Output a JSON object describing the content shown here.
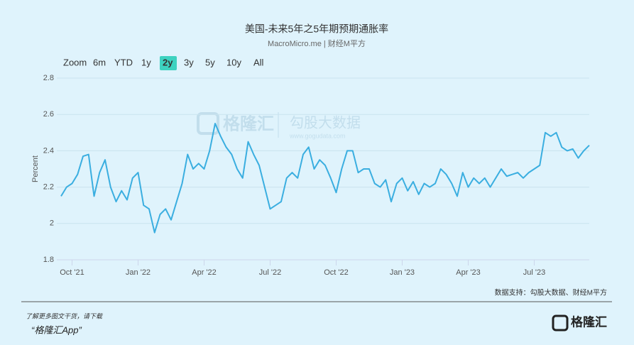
{
  "chart_data": {
    "type": "line",
    "title": "美国-未来5年之5年期预期通胀率",
    "subtitle": "MacroMicro.me | 财经M平方",
    "y_label": "Percent",
    "color": "#3aaee0",
    "grid": true,
    "categories": [
      null,
      null,
      "Oct '21",
      null,
      null,
      null,
      null,
      null,
      null,
      null,
      null,
      null,
      null,
      null,
      "Jan '22",
      null,
      null,
      null,
      null,
      null,
      null,
      null,
      null,
      null,
      null,
      null,
      "Apr '22",
      null,
      null,
      null,
      null,
      null,
      null,
      null,
      null,
      null,
      null,
      null,
      "Jul '22",
      null,
      null,
      null,
      null,
      null,
      null,
      null,
      null,
      null,
      null,
      null,
      "Oct '22",
      null,
      null,
      null,
      null,
      null,
      null,
      null,
      null,
      null,
      null,
      null,
      "Jan '23",
      null,
      null,
      null,
      null,
      null,
      null,
      null,
      null,
      null,
      null,
      null,
      "Apr '23",
      null,
      null,
      null,
      null,
      null,
      null,
      null,
      null,
      null,
      null,
      null,
      "Jul '23",
      null,
      null,
      null,
      null,
      null,
      null,
      null,
      null,
      null,
      null
    ],
    "values": [
      2.15,
      2.2,
      2.22,
      2.27,
      2.37,
      2.38,
      2.15,
      2.28,
      2.35,
      2.2,
      2.12,
      2.18,
      2.13,
      2.25,
      2.28,
      2.1,
      2.08,
      1.95,
      2.05,
      2.08,
      2.02,
      2.12,
      2.22,
      2.38,
      2.3,
      2.33,
      2.3,
      2.4,
      2.55,
      2.48,
      2.42,
      2.38,
      2.3,
      2.25,
      2.45,
      2.38,
      2.32,
      2.2,
      2.08,
      2.1,
      2.12,
      2.25,
      2.28,
      2.25,
      2.38,
      2.42,
      2.3,
      2.35,
      2.32,
      2.25,
      2.17,
      2.3,
      2.4,
      2.4,
      2.28,
      2.3,
      2.3,
      2.22,
      2.2,
      2.24,
      2.12,
      2.22,
      2.25,
      2.18,
      2.23,
      2.16,
      2.22,
      2.2,
      2.22,
      2.3,
      2.27,
      2.22,
      2.15,
      2.28,
      2.2,
      2.25,
      2.22,
      2.25,
      2.2,
      2.25,
      2.3,
      2.26,
      2.27,
      2.28,
      2.25,
      2.28,
      2.3,
      2.32,
      2.5,
      2.48,
      2.5,
      2.42,
      2.4,
      2.41,
      2.36,
      2.4,
      2.43
    ],
    "ylim": [
      1.8,
      2.8
    ],
    "yticks": [
      1.8,
      2,
      2.2,
      2.4,
      2.6,
      2.8
    ]
  },
  "range_selector": {
    "label": "Zoom",
    "buttons": [
      "6m",
      "YTD",
      "1y",
      "2y",
      "3y",
      "5y",
      "10y",
      "All"
    ],
    "selected": "2y"
  },
  "watermark": {
    "brand": "格隆汇",
    "partner": "勾股大数据",
    "url": "www.gogudata.com"
  },
  "footer": {
    "source": "数据支持：勾股大数据、财经M平方",
    "promo": "了解更多图文干货，请下载",
    "app": "“格隆汇App”",
    "logo": "格隆汇"
  }
}
